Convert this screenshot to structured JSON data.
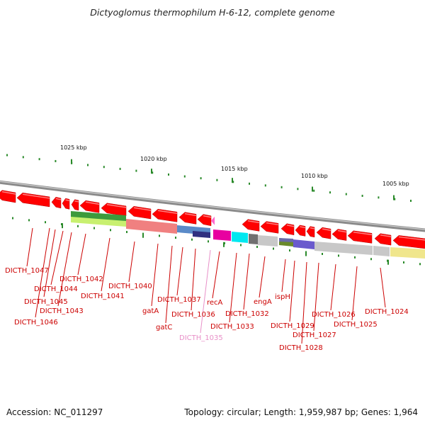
{
  "title": "Dictyoglomus thermophilum H-6-12, complete genome",
  "footer": {
    "accession": "Accession: NC_011297",
    "summary": "Topology: circular; Length: 1,959,987 bp; Genes: 1,964"
  },
  "colors": {
    "gene_arrow": "#ff0000",
    "gene_label": "#cc0000",
    "highlight_label": "#e890c8",
    "tick": "#2a8a2a",
    "backbone": "#8a8a8a"
  },
  "scale_labels": [
    "1025 kbp",
    "1020 kbp",
    "1015 kbp",
    "1010 kbp",
    "1005 kbp"
  ],
  "gene_labels": [
    "DICTH_1047",
    "DICTH_1046",
    "DICTH_1045",
    "DICTH_1044",
    "DICTH_1043",
    "DICTH_1042",
    "DICTH_1041",
    "DICTH_1040",
    "gatA",
    "gatC",
    "DICTH_1037",
    "DICTH_1036",
    "DICTH_1035",
    "recA",
    "DICTH_1033",
    "DICTH_1032",
    "engA",
    "ispH",
    "DICTH_1029",
    "DICTH_1028",
    "DICTH_1027",
    "DICTH_1026",
    "DICTH_1025",
    "DICTH_1024"
  ]
}
